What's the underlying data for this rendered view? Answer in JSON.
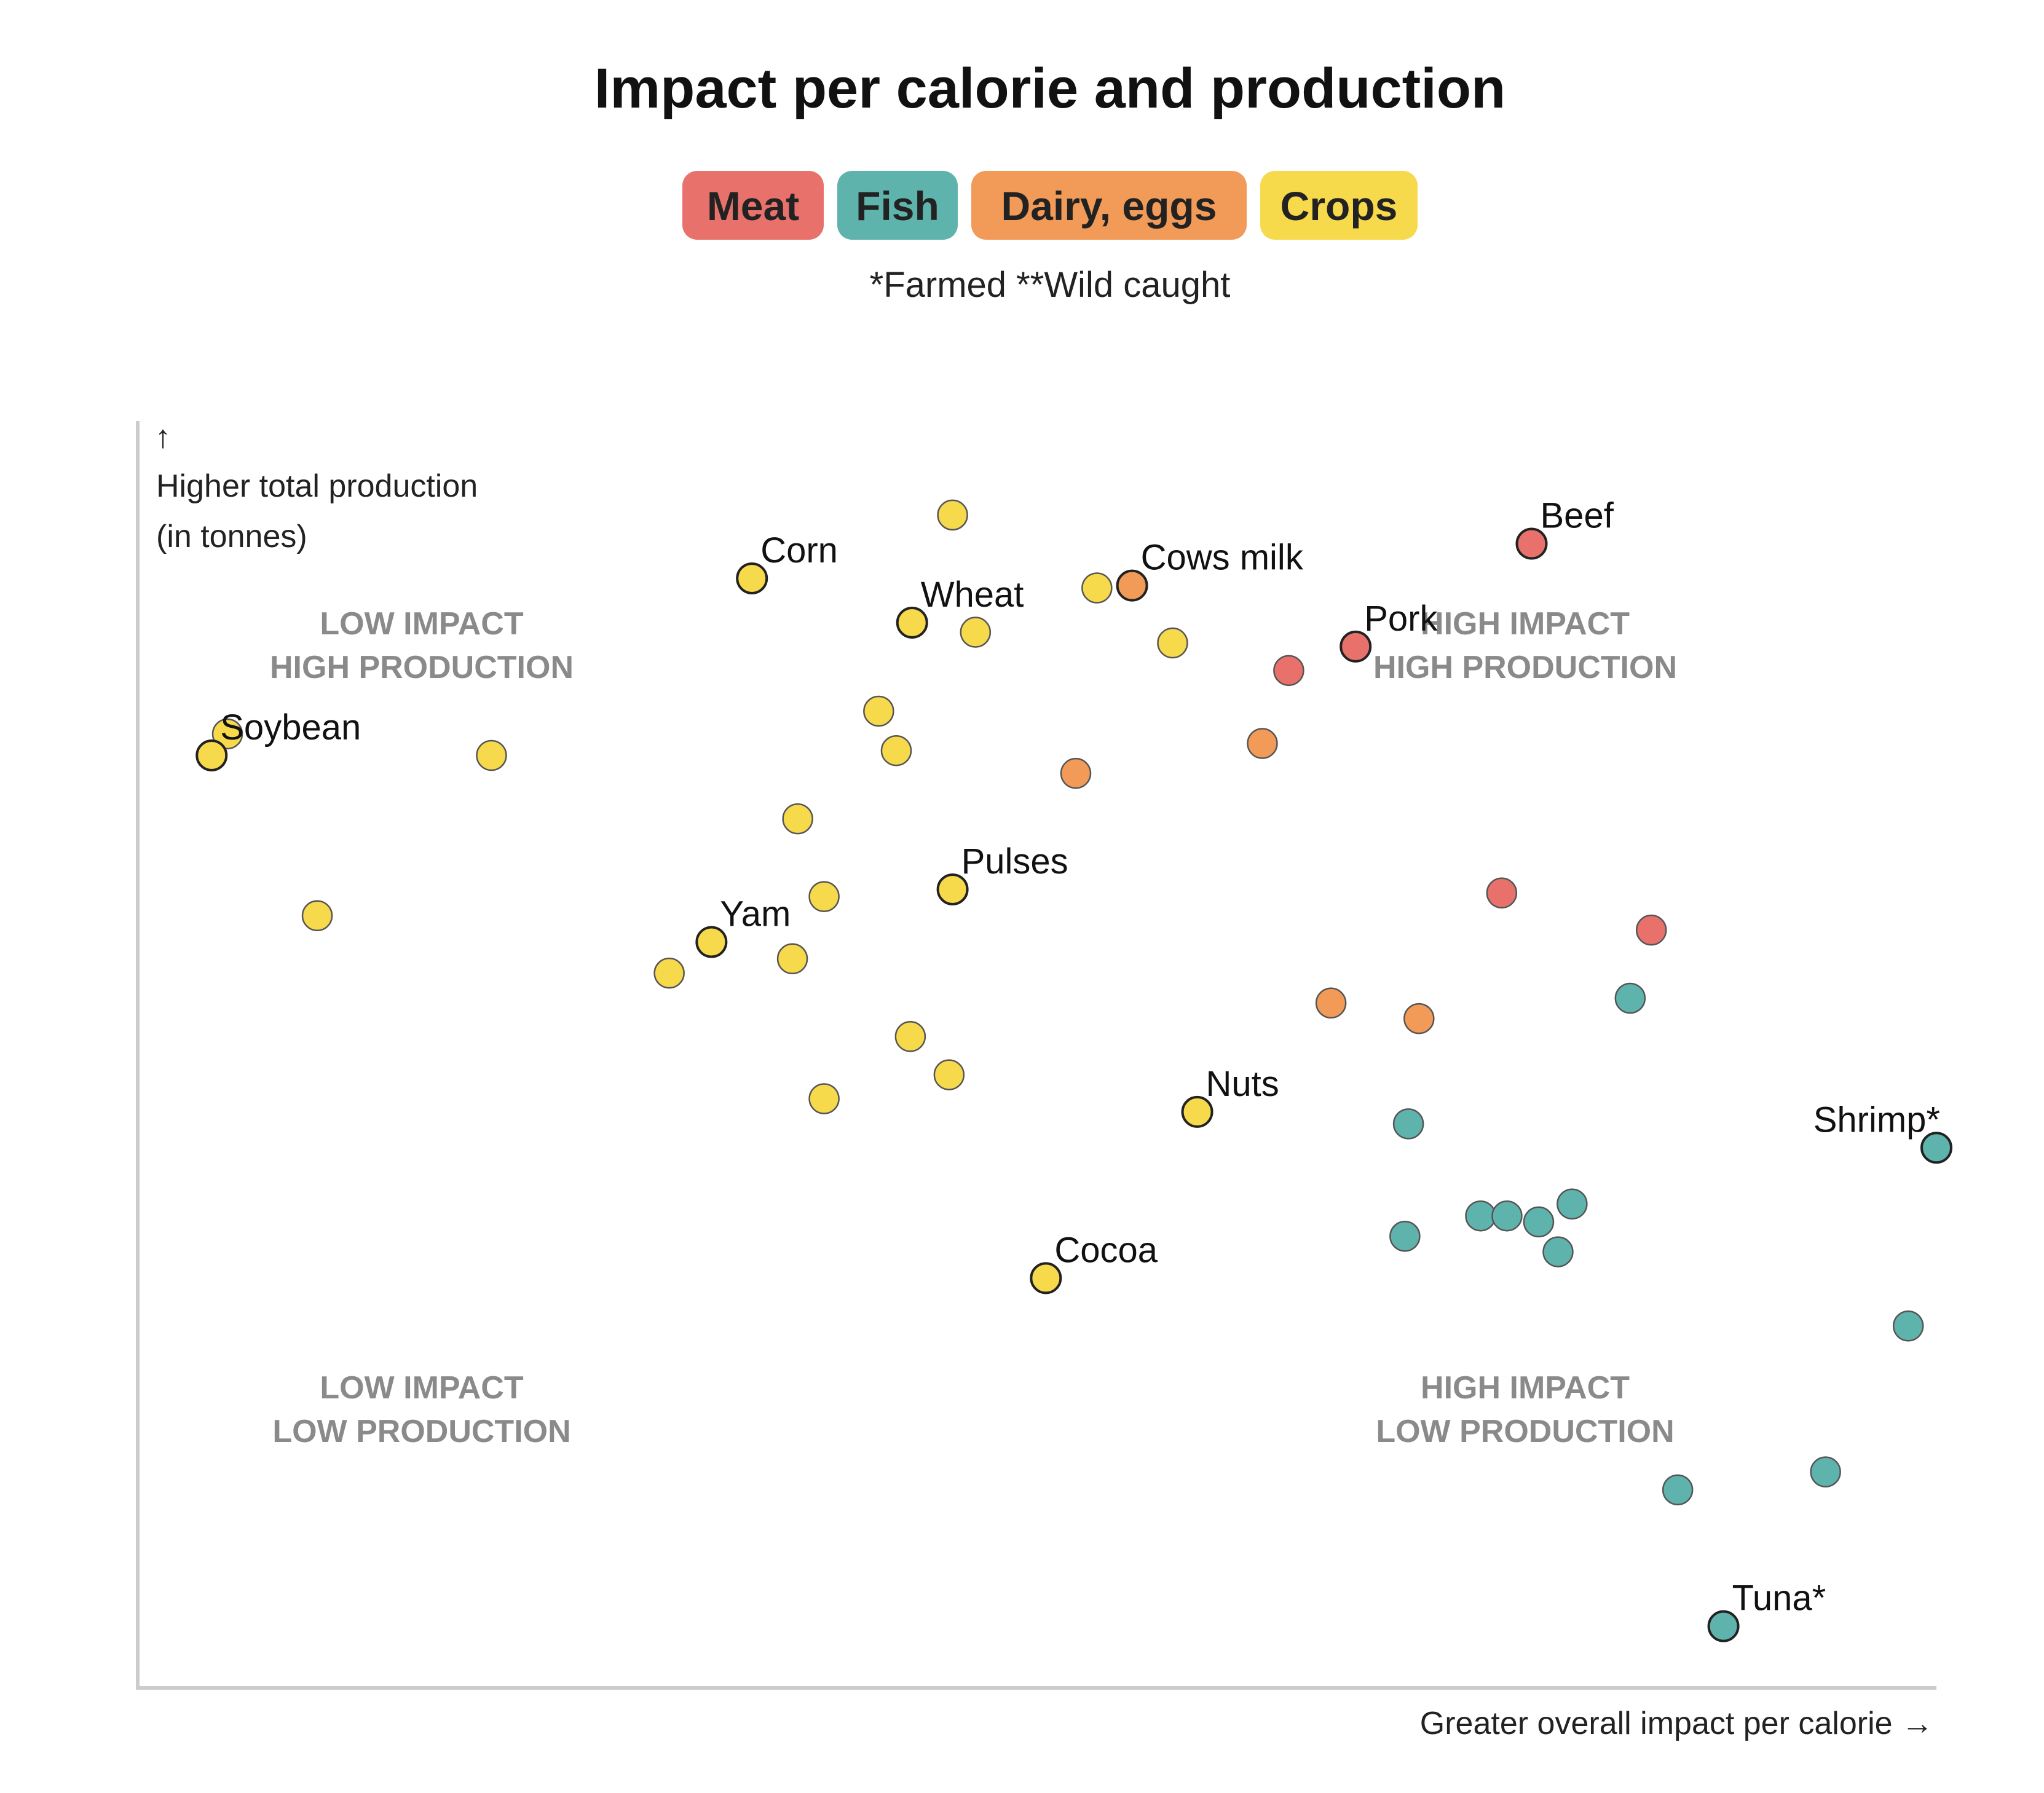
{
  "colors": {
    "Meat": "#e8726b",
    "Fish": "#5fb3ad",
    "Dairy, eggs": "#f29a57",
    "Crops": "#f7d94c"
  },
  "chart_data": {
    "type": "scatter",
    "title": "Impact per calorie and production",
    "legend": [
      "Meat",
      "Fish",
      "Dairy, eggs",
      "Crops"
    ],
    "legend_position": "top-center",
    "note": "*Farmed **Wild caught",
    "ylabel_arrow": "↑",
    "ylabel": [
      "Higher total production",
      "(in tonnes)"
    ],
    "xlabel": "Greater overall impact per calorie →",
    "xlim": [
      0,
      100
    ],
    "ylim": [
      0,
      100
    ],
    "grid": false,
    "quadrants": {
      "top_left": [
        "LOW IMPACT",
        "HIGH PRODUCTION"
      ],
      "top_right": [
        "HIGH IMPACT",
        "HIGH PRODUCTION"
      ],
      "bottom_left": [
        "LOW IMPACT",
        "LOW PRODUCTION"
      ],
      "bottom_right": [
        "HIGH IMPACT",
        "LOW PRODUCTION"
      ]
    },
    "points": [
      {
        "x": 44.1,
        "y": 96.0,
        "group": "Crops",
        "label": ""
      },
      {
        "x": 32.7,
        "y": 90.7,
        "group": "Crops",
        "label": "Corn"
      },
      {
        "x": 41.8,
        "y": 87.0,
        "group": "Crops",
        "label": "Wheat"
      },
      {
        "x": 45.4,
        "y": 86.2,
        "group": "Crops",
        "label": ""
      },
      {
        "x": 52.3,
        "y": 89.9,
        "group": "Crops",
        "label": ""
      },
      {
        "x": 54.3,
        "y": 90.1,
        "group": "Dairy, eggs",
        "label": "Cows milk"
      },
      {
        "x": 56.6,
        "y": 85.3,
        "group": "Crops",
        "label": ""
      },
      {
        "x": 77.0,
        "y": 93.6,
        "group": "Meat",
        "label": "Beef"
      },
      {
        "x": 67.0,
        "y": 85.0,
        "group": "Meat",
        "label": "Pork"
      },
      {
        "x": 63.2,
        "y": 83.0,
        "group": "Meat",
        "label": ""
      },
      {
        "x": 2.9,
        "y": 77.7,
        "group": "Crops",
        "label": ""
      },
      {
        "x": 2.0,
        "y": 75.9,
        "group": "Crops",
        "label": "Soybean"
      },
      {
        "x": 17.9,
        "y": 75.9,
        "group": "Crops",
        "label": ""
      },
      {
        "x": 39.9,
        "y": 79.6,
        "group": "Crops",
        "label": ""
      },
      {
        "x": 40.9,
        "y": 76.3,
        "group": "Crops",
        "label": ""
      },
      {
        "x": 61.7,
        "y": 76.9,
        "group": "Dairy, eggs",
        "label": ""
      },
      {
        "x": 51.1,
        "y": 74.4,
        "group": "Dairy, eggs",
        "label": ""
      },
      {
        "x": 35.3,
        "y": 70.6,
        "group": "Crops",
        "label": ""
      },
      {
        "x": 44.1,
        "y": 64.7,
        "group": "Crops",
        "label": "Pulses"
      },
      {
        "x": 36.8,
        "y": 64.1,
        "group": "Crops",
        "label": ""
      },
      {
        "x": 8.0,
        "y": 62.5,
        "group": "Crops",
        "label": ""
      },
      {
        "x": 30.4,
        "y": 60.3,
        "group": "Crops",
        "label": "Yam"
      },
      {
        "x": 35.0,
        "y": 58.9,
        "group": "Crops",
        "label": ""
      },
      {
        "x": 28.0,
        "y": 57.7,
        "group": "Crops",
        "label": ""
      },
      {
        "x": 75.3,
        "y": 64.4,
        "group": "Meat",
        "label": ""
      },
      {
        "x": 83.8,
        "y": 61.3,
        "group": "Meat",
        "label": ""
      },
      {
        "x": 82.6,
        "y": 55.6,
        "group": "Fish",
        "label": ""
      },
      {
        "x": 65.6,
        "y": 55.2,
        "group": "Dairy, eggs",
        "label": ""
      },
      {
        "x": 70.6,
        "y": 53.9,
        "group": "Dairy, eggs",
        "label": ""
      },
      {
        "x": 41.7,
        "y": 52.4,
        "group": "Crops",
        "label": ""
      },
      {
        "x": 43.9,
        "y": 49.2,
        "group": "Crops",
        "label": ""
      },
      {
        "x": 36.8,
        "y": 47.2,
        "group": "Crops",
        "label": ""
      },
      {
        "x": 58.0,
        "y": 46.1,
        "group": "Crops",
        "label": "Nuts"
      },
      {
        "x": 70.0,
        "y": 45.1,
        "group": "Fish",
        "label": ""
      },
      {
        "x": 100.0,
        "y": 43.1,
        "group": "Fish",
        "label": "Shrimp*"
      },
      {
        "x": 79.3,
        "y": 38.4,
        "group": "Fish",
        "label": ""
      },
      {
        "x": 74.1,
        "y": 37.4,
        "group": "Fish",
        "label": ""
      },
      {
        "x": 75.6,
        "y": 37.4,
        "group": "Fish",
        "label": ""
      },
      {
        "x": 77.4,
        "y": 36.9,
        "group": "Fish",
        "label": ""
      },
      {
        "x": 69.8,
        "y": 35.7,
        "group": "Fish",
        "label": ""
      },
      {
        "x": 78.5,
        "y": 34.4,
        "group": "Fish",
        "label": ""
      },
      {
        "x": 49.4,
        "y": 32.2,
        "group": "Crops",
        "label": "Cocoa"
      },
      {
        "x": 98.4,
        "y": 28.2,
        "group": "Fish",
        "label": ""
      },
      {
        "x": 93.7,
        "y": 16.0,
        "group": "Fish",
        "label": ""
      },
      {
        "x": 85.3,
        "y": 14.5,
        "group": "Fish",
        "label": ""
      },
      {
        "x": 87.9,
        "y": 3.1,
        "group": "Fish",
        "label": "Tuna*"
      }
    ]
  }
}
